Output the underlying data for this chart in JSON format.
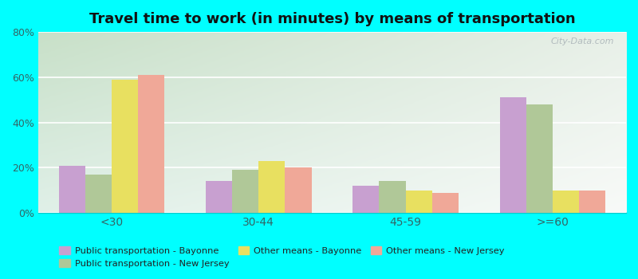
{
  "title": "Travel time to work (in minutes) by means of transportation",
  "categories": [
    "<30",
    "30-44",
    "45-59",
    ">=60"
  ],
  "series_order": [
    "Public transportation - Bayonne",
    "Public transportation - New Jersey",
    "Other means - Bayonne",
    "Other means - New Jersey"
  ],
  "series": {
    "Public transportation - Bayonne": [
      21,
      14,
      12,
      51
    ],
    "Public transportation - New Jersey": [
      17,
      19,
      14,
      48
    ],
    "Other means - Bayonne": [
      59,
      23,
      10,
      10
    ],
    "Other means - New Jersey": [
      61,
      20,
      9,
      10
    ]
  },
  "colors": {
    "Public transportation - Bayonne": "#c8a0d0",
    "Public transportation - New Jersey": "#b0c898",
    "Other means - Bayonne": "#e8e060",
    "Other means - New Jersey": "#f0a898"
  },
  "legend_order": [
    "Public transportation - Bayonne",
    "Public transportation - New Jersey",
    "Other means - Bayonne",
    "Other means - New Jersey"
  ],
  "ylim": [
    0,
    80
  ],
  "yticks": [
    0,
    20,
    40,
    60,
    80
  ],
  "ytick_labels": [
    "0%",
    "20%",
    "40%",
    "60%",
    "80%"
  ],
  "background_color": "#00ffff",
  "plot_bg_color_topleft": "#c8e0c8",
  "plot_bg_color_topright": "#e8f0e8",
  "plot_bg_color_bottomleft": "#e0f0e8",
  "plot_bg_color_bottomright": "#f8faf8",
  "title_fontsize": 13,
  "axis_label_color": "#336666",
  "watermark": "City-Data.com",
  "bar_width": 0.18
}
